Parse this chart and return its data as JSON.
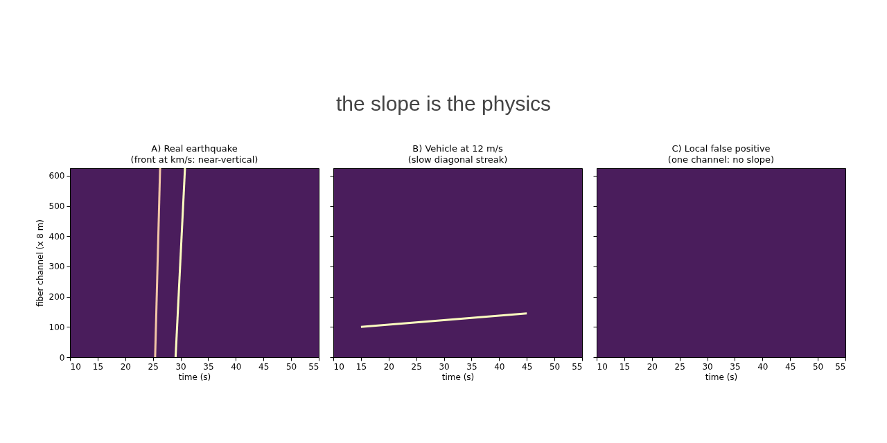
{
  "chart_data": [
    {
      "type": "other",
      "subtitle": "the slope is the physics"
    },
    {
      "type": "line",
      "title": "A) Real earthquake\n(front at km/s: near-vertical)",
      "xlabel": "time (s)",
      "ylabel": "fiber channel (x 8 m)",
      "xlim": [
        10,
        55
      ],
      "ylim": [
        0,
        625
      ],
      "xticks": [
        10,
        15,
        20,
        25,
        30,
        35,
        40,
        45,
        50,
        55
      ],
      "yticks": [
        0,
        100,
        200,
        300,
        400,
        500,
        600
      ],
      "series": [
        {
          "color": "#f2c6a6",
          "x": [
            25.4,
            26.3
          ],
          "values": [
            0,
            625
          ]
        },
        {
          "color": "#fcfdbf",
          "x": [
            29.1,
            30.8
          ],
          "values": [
            0,
            625
          ]
        }
      ]
    },
    {
      "type": "line",
      "title": "B) Vehicle at 12 m/s\n(slow diagonal streak)",
      "xlabel": "time (s)",
      "xlim": [
        10,
        55
      ],
      "ylim": [
        0,
        625
      ],
      "xticks": [
        10,
        15,
        20,
        25,
        30,
        35,
        40,
        45,
        50,
        55
      ],
      "yticks": [
        0,
        100,
        200,
        300,
        400,
        500,
        600
      ],
      "tick_labels": "x",
      "series": [
        {
          "color": "#fcfdbf",
          "x": [
            15,
            45
          ],
          "values": [
            100,
            145
          ]
        }
      ]
    },
    {
      "type": "line",
      "title": "C) Local false positive\n(one channel: no slope)",
      "xlabel": "time (s)",
      "xlim": [
        10,
        55
      ],
      "ylim": [
        0,
        625
      ],
      "xticks": [
        10,
        15,
        20,
        25,
        30,
        35,
        40,
        45,
        50,
        55
      ],
      "yticks": [
        0,
        100,
        200,
        300,
        400,
        500,
        600
      ],
      "tick_labels": "x"
    }
  ]
}
